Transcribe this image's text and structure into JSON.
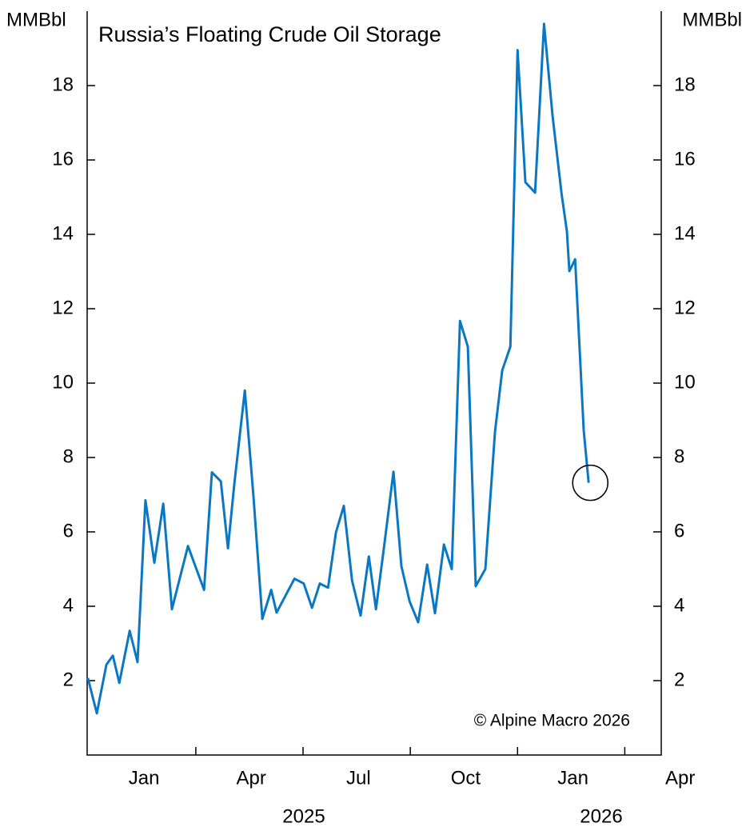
{
  "chart_data": {
    "type": "line",
    "title": "Russia’s Floating Crude Oil Storage",
    "y_label": "MMBbl",
    "source": "© Alpine Macro 2026",
    "x_group_labels": [
      "2025",
      "2026"
    ],
    "x": [
      -1.57,
      -1.32,
      -1.05,
      -0.87,
      -0.69,
      -0.4,
      -0.18,
      0.04,
      0.29,
      0.54,
      0.78,
      1.23,
      1.68,
      1.9,
      2.15,
      2.35,
      2.53,
      2.82,
      3.06,
      3.31,
      3.56,
      3.71,
      4.21,
      4.47,
      4.7,
      4.92,
      5.15,
      5.37,
      5.59,
      5.82,
      6.06,
      6.29,
      6.49,
      6.71,
      6.98,
      7.2,
      7.43,
      7.67,
      7.92,
      8.14,
      8.39,
      8.61,
      8.84,
      9.06,
      9.28,
      9.55,
      9.82,
      10.02,
      10.25,
      10.45,
      10.67,
      10.94,
      11.19,
      11.43,
      11.68,
      11.83,
      11.9,
      12.06,
      12.3,
      12.44
    ],
    "series": [
      {
        "name": "Russia floating crude oil storage",
        "color": "#0a77c4",
        "values": [
          2.07,
          1.12,
          2.43,
          2.67,
          1.94,
          3.34,
          2.5,
          6.85,
          5.17,
          6.76,
          3.92,
          5.62,
          4.44,
          7.6,
          7.36,
          5.56,
          7.32,
          9.8,
          6.98,
          3.66,
          4.44,
          3.83,
          4.74,
          4.61,
          3.96,
          4.61,
          4.5,
          5.99,
          6.7,
          4.69,
          3.75,
          5.34,
          3.92,
          5.56,
          7.62,
          5.08,
          4.13,
          3.57,
          5.12,
          3.81,
          5.66,
          5.0,
          11.67,
          10.98,
          4.54,
          5.0,
          8.7,
          10.34,
          10.98,
          18.95,
          15.4,
          15.12,
          19.66,
          17.18,
          15.1,
          14.08,
          13.01,
          13.33,
          8.74,
          7.32
        ]
      }
    ],
    "xlim": [
      -1.59,
      14.47
    ],
    "xticks": [
      {
        "value": 0,
        "label": "Jan"
      },
      {
        "value": 3,
        "label": "Apr"
      },
      {
        "value": 6,
        "label": "Jul"
      },
      {
        "value": 9,
        "label": "Oct"
      },
      {
        "value": 12,
        "label": "Jan"
      },
      {
        "value": 15,
        "label": "Apr"
      }
    ],
    "xtickmarks": [
      1.45,
      4.45,
      7.45,
      10.45,
      13.45
    ],
    "ylim": [
      0,
      20
    ],
    "yticks": [
      2,
      4,
      6,
      8,
      10,
      12,
      14,
      16,
      18
    ],
    "grid": false
  }
}
